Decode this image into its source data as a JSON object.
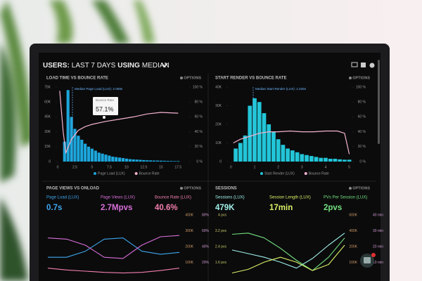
{
  "header": {
    "parts": [
      "USERS:",
      "LAST 7 DAYS",
      "USING",
      "MEDIAN"
    ]
  },
  "panels": [
    {
      "title": "LOAD TIME VS BOUNCE RATE",
      "options": "OPTIONS",
      "annotation": "Median Page Load (LUX): 2.058s",
      "tooltip": {
        "label": "Bounce Rate",
        "value": "57.1%"
      },
      "xlim": [
        0,
        19
      ],
      "ylim": [
        0,
        75
      ],
      "y2lim": [
        0,
        100
      ],
      "xticks": [
        0,
        2.5,
        5,
        7.5,
        10,
        12.5,
        15,
        17.5
      ],
      "yticks": [
        {
          "value": 0,
          "label": "0"
        },
        {
          "value": 15,
          "label": "15K"
        },
        {
          "value": 30,
          "label": "30K"
        },
        {
          "value": 45,
          "label": "45K"
        },
        {
          "value": 60,
          "label": "60K"
        },
        {
          "value": 75,
          "label": "75K"
        }
      ],
      "y2ticks": [
        {
          "value": 0,
          "label": "0 %"
        },
        {
          "value": 20,
          "label": "20 %"
        },
        {
          "value": 40,
          "label": "40 %"
        },
        {
          "value": 60,
          "label": "60 %"
        },
        {
          "value": 80,
          "label": "80 %"
        },
        {
          "value": 100,
          "label": "100 %"
        }
      ],
      "bars": {
        "color": "#1ca6dc",
        "x": [
          1,
          1.5,
          2,
          2.5,
          3,
          3.5,
          4,
          4.5,
          5,
          5.5,
          6,
          6.5,
          7,
          7.5,
          8,
          8.5,
          9,
          9.5,
          10,
          10.5,
          11,
          11.5,
          12,
          12.5,
          13,
          13.5,
          14,
          14.5,
          15,
          15.5,
          16,
          16.5,
          17,
          17.5
        ],
        "values": [
          20,
          72,
          45,
          33,
          26,
          22,
          18,
          15,
          13,
          11,
          9,
          8,
          7,
          6,
          5,
          4.5,
          4,
          3.5,
          3,
          2.5,
          2.2,
          2,
          1.8,
          1.5,
          1.3,
          1.2,
          1,
          1,
          0.9,
          0.8,
          0.7,
          0.6,
          0.5,
          0.5
        ]
      },
      "line": {
        "color": "#f4b3cf",
        "x": [
          0.3,
          0.8,
          1.2,
          2,
          3,
          4,
          5,
          7,
          9,
          11,
          13,
          15,
          17.5
        ],
        "values": [
          95,
          40,
          12,
          30,
          42,
          47,
          50,
          54,
          57,
          60,
          64,
          66,
          65
        ]
      },
      "legend": [
        {
          "name": "Page Load (LUX)",
          "color": "#1ca6dc"
        },
        {
          "name": "Bounce Rate",
          "color": "#f4b3cf"
        }
      ]
    },
    {
      "title": "START RENDER VS BOUNCE RATE",
      "options": "OPTIONS",
      "annotation": "Median Start Render (LUX): 1.025s",
      "xlim": [
        -0.1,
        5.1
      ],
      "ylim": [
        0,
        40
      ],
      "y2lim": [
        0,
        100
      ],
      "xticks": [
        0,
        1,
        2,
        3,
        4,
        5
      ],
      "yticks": [
        {
          "value": 0,
          "label": "0"
        },
        {
          "value": 10,
          "label": "10K"
        },
        {
          "value": 20,
          "label": "20K"
        },
        {
          "value": 30,
          "label": "30K"
        },
        {
          "value": 40,
          "label": "40K"
        }
      ],
      "y2ticks": [
        {
          "value": 0,
          "label": "0 %"
        },
        {
          "value": 20,
          "label": "20 %"
        },
        {
          "value": 40,
          "label": "40 %"
        },
        {
          "value": 60,
          "label": "60 %"
        },
        {
          "value": 80,
          "label": "80 %"
        },
        {
          "value": 100,
          "label": "100 %"
        }
      ],
      "bars": {
        "color": "#22c6d8",
        "x": [
          0.2,
          0.4,
          0.6,
          0.8,
          1,
          1.2,
          1.4,
          1.6,
          1.8,
          2,
          2.2,
          2.4,
          2.6,
          2.8,
          3,
          3.2,
          3.4,
          3.6,
          3.8,
          4,
          4.2,
          4.4,
          4.6,
          4.8,
          5
        ],
        "values": [
          7,
          10,
          14,
          30,
          34,
          32,
          26,
          20,
          16,
          12,
          9,
          7,
          6,
          5,
          4,
          3.5,
          3,
          2.5,
          2,
          2,
          1.5,
          1.5,
          1.2,
          1,
          1
        ]
      },
      "line": {
        "color": "#f4b3cf",
        "x": [
          0.1,
          0.4,
          0.8,
          1.2,
          1.6,
          2,
          2.5,
          3,
          3.5,
          4,
          4.5,
          4.8,
          5
        ],
        "values": [
          25,
          30,
          34,
          38,
          40,
          40,
          41,
          40,
          40,
          41,
          41,
          38,
          10
        ]
      },
      "legend": [
        {
          "name": "Start Render (LUX)",
          "color": "#22c6d8"
        },
        {
          "name": "Bounce Rate",
          "color": "#f4b3cf"
        }
      ]
    },
    {
      "title": "PAGE VIEWS VS ONLOAD",
      "options": "OPTIONS",
      "metrics": [
        {
          "label": "Page Load (LUX)",
          "value": "0.7s",
          "color": "#3ea6ec"
        },
        {
          "label": "Page Views (LUX)",
          "value": "2.7Mpvs",
          "color": "#d86fd8"
        },
        {
          "label": "Bounce Rate (LUX)",
          "value": "40.6%",
          "color": "#f47fae"
        }
      ],
      "right_labels": [
        [
          "400K",
          "80%"
        ],
        [
          "300K",
          "60%"
        ],
        [
          "200K",
          "40%"
        ],
        [
          "100K",
          "20%"
        ]
      ],
      "ylim": [
        0,
        100
      ],
      "series": [
        {
          "color": "#3ea6ec",
          "values": [
            30,
            30,
            40,
            60,
            62,
            40,
            35,
            38
          ]
        },
        {
          "color": "#d86fd8",
          "values": [
            62,
            60,
            50,
            30,
            28,
            50,
            64,
            66
          ]
        },
        {
          "color": "#f47fae",
          "values": [
            12,
            9,
            7,
            5,
            4,
            5,
            8,
            12
          ]
        }
      ]
    },
    {
      "title": "SESSIONS",
      "options": "OPTIONS",
      "metrics": [
        {
          "label": "Sessions (LUX)",
          "value": "479K",
          "color": "#9ff0e8"
        },
        {
          "label": "Session Length (LUX)",
          "value": "17min",
          "color": "#d9f066"
        },
        {
          "label": "PVs Per Session (LUX)",
          "value": "2pvs",
          "color": "#72e07e"
        }
      ],
      "left_labels": [
        "4 pvs",
        "3.2 pvs",
        "2.4 pvs",
        "1.6 pvs"
      ],
      "right_labels": [
        [
          "600K",
          "40 min"
        ],
        [
          "400K",
          "30 min"
        ],
        [
          "200K",
          "20 min"
        ],
        [
          "100K",
          "10 min"
        ]
      ],
      "ylim": [
        0,
        100
      ],
      "series": [
        {
          "color": "#72e07e",
          "values": [
            68,
            70,
            62,
            45,
            25,
            8,
            30,
            62
          ]
        },
        {
          "color": "#9ff0e8",
          "values": [
            42,
            36,
            30,
            22,
            12,
            28,
            50,
            70
          ]
        },
        {
          "color": "#d9f066",
          "values": [
            4,
            10,
            22,
            30,
            22,
            8,
            18,
            50
          ]
        }
      ]
    }
  ]
}
